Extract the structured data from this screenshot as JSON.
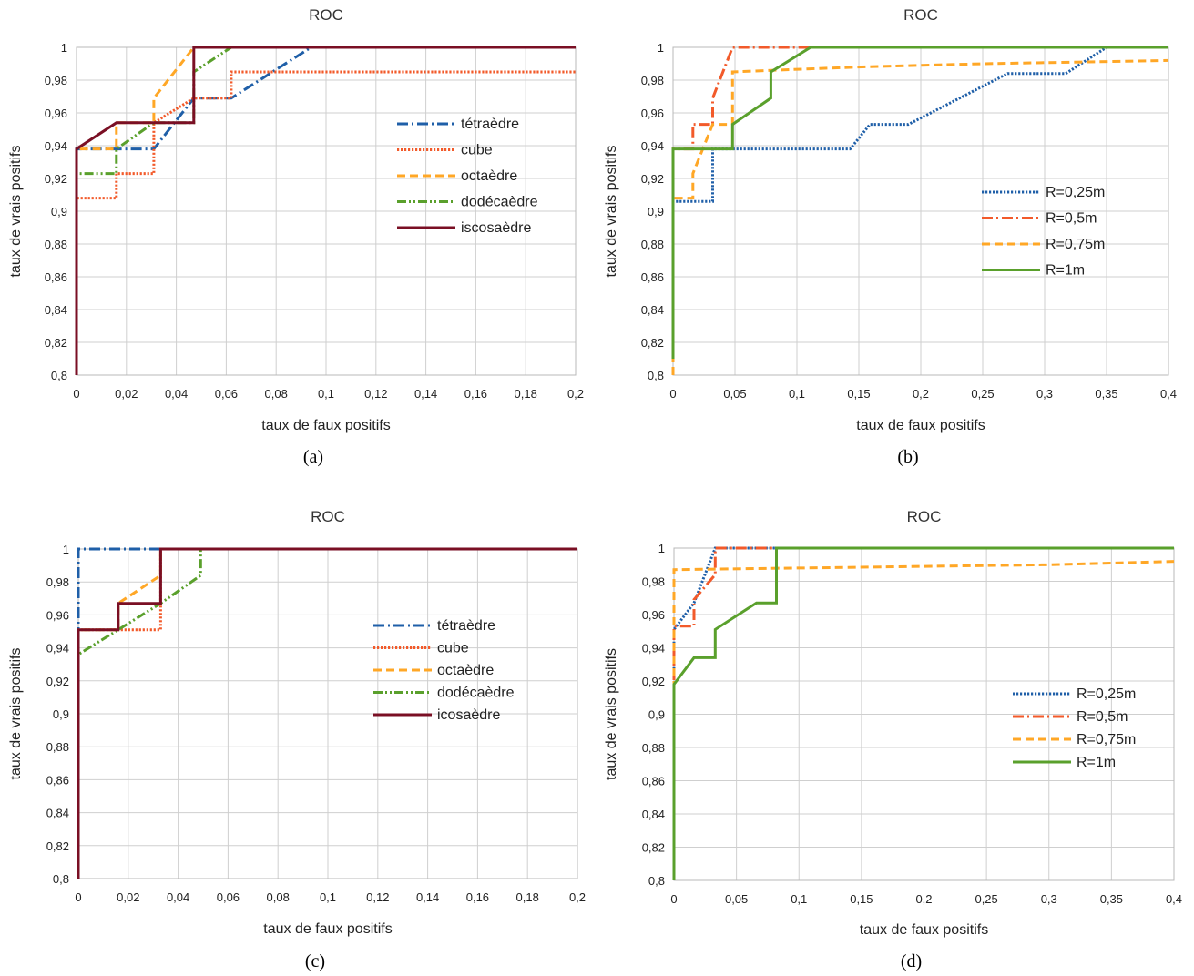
{
  "chart_data": [
    {
      "id": "a",
      "type": "line",
      "caption": "(a)",
      "title": "ROC",
      "xlabel": "taux de faux positifs",
      "ylabel": "taux de vrais positifs",
      "xlim": [
        0,
        0.2
      ],
      "ylim": [
        0.8,
        1
      ],
      "xticks": [
        "0",
        "0,02",
        "0,04",
        "0,06",
        "0,08",
        "0,1",
        "0,12",
        "0,14",
        "0,16",
        "0,18",
        "0,2"
      ],
      "yticks": [
        "0,8",
        "0,82",
        "0,84",
        "0,86",
        "0,88",
        "0,9",
        "0,92",
        "0,94",
        "0,96",
        "0,98",
        "1"
      ],
      "legend_position": "center-right",
      "grid": true,
      "series": [
        {
          "name": "tétraèdre",
          "color": "#1f5fa8",
          "dash": "dashdot",
          "points": [
            [
              0,
              0.8
            ],
            [
              0,
              0.938
            ],
            [
              0.031,
              0.938
            ],
            [
              0.047,
              0.969
            ],
            [
              0.062,
              0.969
            ],
            [
              0.094,
              1
            ],
            [
              0.2,
              1
            ]
          ]
        },
        {
          "name": "cube",
          "color": "#f25a2a",
          "dash": "dotted",
          "points": [
            [
              0,
              0.815
            ],
            [
              0,
              0.908
            ],
            [
              0.016,
              0.908
            ],
            [
              0.016,
              0.923
            ],
            [
              0.031,
              0.923
            ],
            [
              0.031,
              0.954
            ],
            [
              0.047,
              0.969
            ],
            [
              0.062,
              0.969
            ],
            [
              0.062,
              0.985
            ],
            [
              0.2,
              0.985
            ]
          ]
        },
        {
          "name": "octaèdre",
          "color": "#ffa726",
          "dash": "dashed",
          "points": [
            [
              0,
              0.8
            ],
            [
              0,
              0.938
            ],
            [
              0.016,
              0.938
            ],
            [
              0.016,
              0.954
            ],
            [
              0.031,
              0.954
            ],
            [
              0.031,
              0.969
            ],
            [
              0.047,
              1
            ],
            [
              0.2,
              1
            ]
          ]
        },
        {
          "name": "dodécaèdre",
          "color": "#5aa02c",
          "dash": "dashdotdot",
          "points": [
            [
              0,
              0.8
            ],
            [
              0,
              0.923
            ],
            [
              0.016,
              0.923
            ],
            [
              0.016,
              0.938
            ],
            [
              0.031,
              0.954
            ],
            [
              0.047,
              0.954
            ],
            [
              0.047,
              0.985
            ],
            [
              0.062,
              1
            ],
            [
              0.2,
              1
            ]
          ]
        },
        {
          "name": "iscosaèdre",
          "color": "#7a0f24",
          "dash": "solid",
          "points": [
            [
              0,
              0.8
            ],
            [
              0,
              0.938
            ],
            [
              0.016,
              0.954
            ],
            [
              0.047,
              0.954
            ],
            [
              0.047,
              1
            ],
            [
              0.2,
              1
            ]
          ]
        }
      ]
    },
    {
      "id": "b",
      "type": "line",
      "caption": "(b)",
      "title": "ROC",
      "xlabel": "taux de faux positifs",
      "ylabel": "taux de vrais positifs",
      "xlim": [
        0,
        0.4
      ],
      "ylim": [
        0.8,
        1
      ],
      "xticks": [
        "0",
        "0,05",
        "0,1",
        "0,15",
        "0,2",
        "0,25",
        "0,3",
        "0,35",
        "0,4"
      ],
      "yticks": [
        "0,8",
        "0,82",
        "0,84",
        "0,86",
        "0,88",
        "0,9",
        "0,92",
        "0,94",
        "0,96",
        "0,98",
        "1"
      ],
      "legend_position": "center-right",
      "grid": true,
      "series": [
        {
          "name": "R=0,25m",
          "color": "#1f5fa8",
          "dash": "dotted",
          "points": [
            [
              0,
              0.81
            ],
            [
              0,
              0.906
            ],
            [
              0.032,
              0.906
            ],
            [
              0.032,
              0.938
            ],
            [
              0.143,
              0.938
            ],
            [
              0.159,
              0.953
            ],
            [
              0.19,
              0.953
            ],
            [
              0.27,
              0.984
            ],
            [
              0.317,
              0.984
            ],
            [
              0.35,
              1
            ],
            [
              0.4,
              1
            ]
          ]
        },
        {
          "name": "R=0,5m",
          "color": "#f25a2a",
          "dash": "dashdot",
          "points": [
            [
              0,
              0.81
            ],
            [
              0,
              0.938
            ],
            [
              0.016,
              0.938
            ],
            [
              0.016,
              0.953
            ],
            [
              0.032,
              0.953
            ],
            [
              0.032,
              0.969
            ],
            [
              0.048,
              1
            ],
            [
              0.4,
              1
            ]
          ]
        },
        {
          "name": "R=0,75m",
          "color": "#ffa726",
          "dash": "dashed",
          "points": [
            [
              0,
              0.8
            ],
            [
              0,
              0.908
            ],
            [
              0.016,
              0.908
            ],
            [
              0.016,
              0.923
            ],
            [
              0.032,
              0.953
            ],
            [
              0.048,
              0.953
            ],
            [
              0.048,
              0.985
            ],
            [
              0.08,
              0.986
            ],
            [
              0.15,
              0.988
            ],
            [
              0.25,
              0.99
            ],
            [
              0.4,
              0.992
            ]
          ]
        },
        {
          "name": "R=1m",
          "color": "#5aa02c",
          "dash": "solid",
          "points": [
            [
              0,
              0.81
            ],
            [
              0,
              0.938
            ],
            [
              0.048,
              0.938
            ],
            [
              0.048,
              0.953
            ],
            [
              0.079,
              0.969
            ],
            [
              0.079,
              0.985
            ],
            [
              0.111,
              1
            ],
            [
              0.4,
              1
            ]
          ]
        }
      ]
    },
    {
      "id": "c",
      "type": "line",
      "caption": "(c)",
      "title": "ROC",
      "xlabel": "taux de faux positifs",
      "ylabel": "taux de vrais positifs",
      "xlim": [
        0,
        0.2
      ],
      "ylim": [
        0.8,
        1
      ],
      "xticks": [
        "0",
        "0,02",
        "0,04",
        "0,06",
        "0,08",
        "0,1",
        "0,12",
        "0,14",
        "0,16",
        "0,18",
        "0,2"
      ],
      "yticks": [
        "0,8",
        "0,82",
        "0,84",
        "0,86",
        "0,88",
        "0,9",
        "0,92",
        "0,94",
        "0,96",
        "0,98",
        "1"
      ],
      "legend_position": "center-right",
      "grid": true,
      "series": [
        {
          "name": "tétraèdre",
          "color": "#1f5fa8",
          "dash": "dashdot",
          "points": [
            [
              0,
              0.8
            ],
            [
              0,
              1
            ],
            [
              0.2,
              1
            ]
          ]
        },
        {
          "name": "cube",
          "color": "#f25a2a",
          "dash": "dotted",
          "points": [
            [
              0,
              0.8
            ],
            [
              0,
              0.951
            ],
            [
              0.033,
              0.951
            ],
            [
              0.033,
              1
            ],
            [
              0.2,
              1
            ]
          ]
        },
        {
          "name": "octaèdre",
          "color": "#ffa726",
          "dash": "dashed",
          "points": [
            [
              0,
              0.822
            ],
            [
              0,
              0.951
            ],
            [
              0.016,
              0.951
            ],
            [
              0.016,
              0.967
            ],
            [
              0.033,
              0.984
            ],
            [
              0.033,
              1
            ],
            [
              0.2,
              1
            ]
          ]
        },
        {
          "name": "dodécaèdre",
          "color": "#5aa02c",
          "dash": "dashdotdot",
          "points": [
            [
              0,
              0.8
            ],
            [
              0,
              0.936
            ],
            [
              0.016,
              0.951
            ],
            [
              0.033,
              0.967
            ],
            [
              0.049,
              0.984
            ],
            [
              0.049,
              1
            ],
            [
              0.2,
              1
            ]
          ]
        },
        {
          "name": "icosaèdre",
          "color": "#7a0f24",
          "dash": "solid",
          "points": [
            [
              0,
              0.8
            ],
            [
              0,
              0.951
            ],
            [
              0.016,
              0.951
            ],
            [
              0.016,
              0.967
            ],
            [
              0.033,
              0.967
            ],
            [
              0.033,
              1
            ],
            [
              0.2,
              1
            ]
          ]
        }
      ]
    },
    {
      "id": "d",
      "type": "line",
      "caption": "(d)",
      "title": "ROC",
      "xlabel": "taux de faux positifs",
      "ylabel": "taux de vrais positifs",
      "xlim": [
        0,
        0.4
      ],
      "ylim": [
        0.8,
        1
      ],
      "xticks": [
        "0",
        "0,05",
        "0,1",
        "0,15",
        "0,2",
        "0,25",
        "0,3",
        "0,35",
        "0,4"
      ],
      "yticks": [
        "0,8",
        "0,82",
        "0,84",
        "0,86",
        "0,88",
        "0,9",
        "0,92",
        "0,94",
        "0,96",
        "0,98",
        "1"
      ],
      "legend_position": "center-right",
      "grid": true,
      "series": [
        {
          "name": "R=0,25m",
          "color": "#1f5fa8",
          "dash": "dotted",
          "points": [
            [
              0,
              0.8
            ],
            [
              0,
              0.951
            ],
            [
              0.016,
              0.967
            ],
            [
              0.033,
              1
            ],
            [
              0.4,
              1
            ]
          ]
        },
        {
          "name": "R=0,5m",
          "color": "#f25a2a",
          "dash": "dashdot",
          "points": [
            [
              0,
              0.8
            ],
            [
              0,
              0.953
            ],
            [
              0.016,
              0.953
            ],
            [
              0.016,
              0.969
            ],
            [
              0.033,
              0.984
            ],
            [
              0.033,
              1
            ],
            [
              0.4,
              1
            ]
          ]
        },
        {
          "name": "R=0,75m",
          "color": "#ffa726",
          "dash": "dashed",
          "points": [
            [
              0,
              0.8
            ],
            [
              0,
              0.987
            ],
            [
              0.1,
              0.988
            ],
            [
              0.2,
              0.989
            ],
            [
              0.3,
              0.99
            ],
            [
              0.4,
              0.992
            ]
          ]
        },
        {
          "name": "R=1m",
          "color": "#5aa02c",
          "dash": "solid",
          "points": [
            [
              0,
              0.8
            ],
            [
              0,
              0.918
            ],
            [
              0.016,
              0.934
            ],
            [
              0.033,
              0.934
            ],
            [
              0.033,
              0.951
            ],
            [
              0.066,
              0.967
            ],
            [
              0.082,
              0.967
            ],
            [
              0.082,
              1
            ],
            [
              0.4,
              1
            ]
          ]
        }
      ]
    }
  ]
}
